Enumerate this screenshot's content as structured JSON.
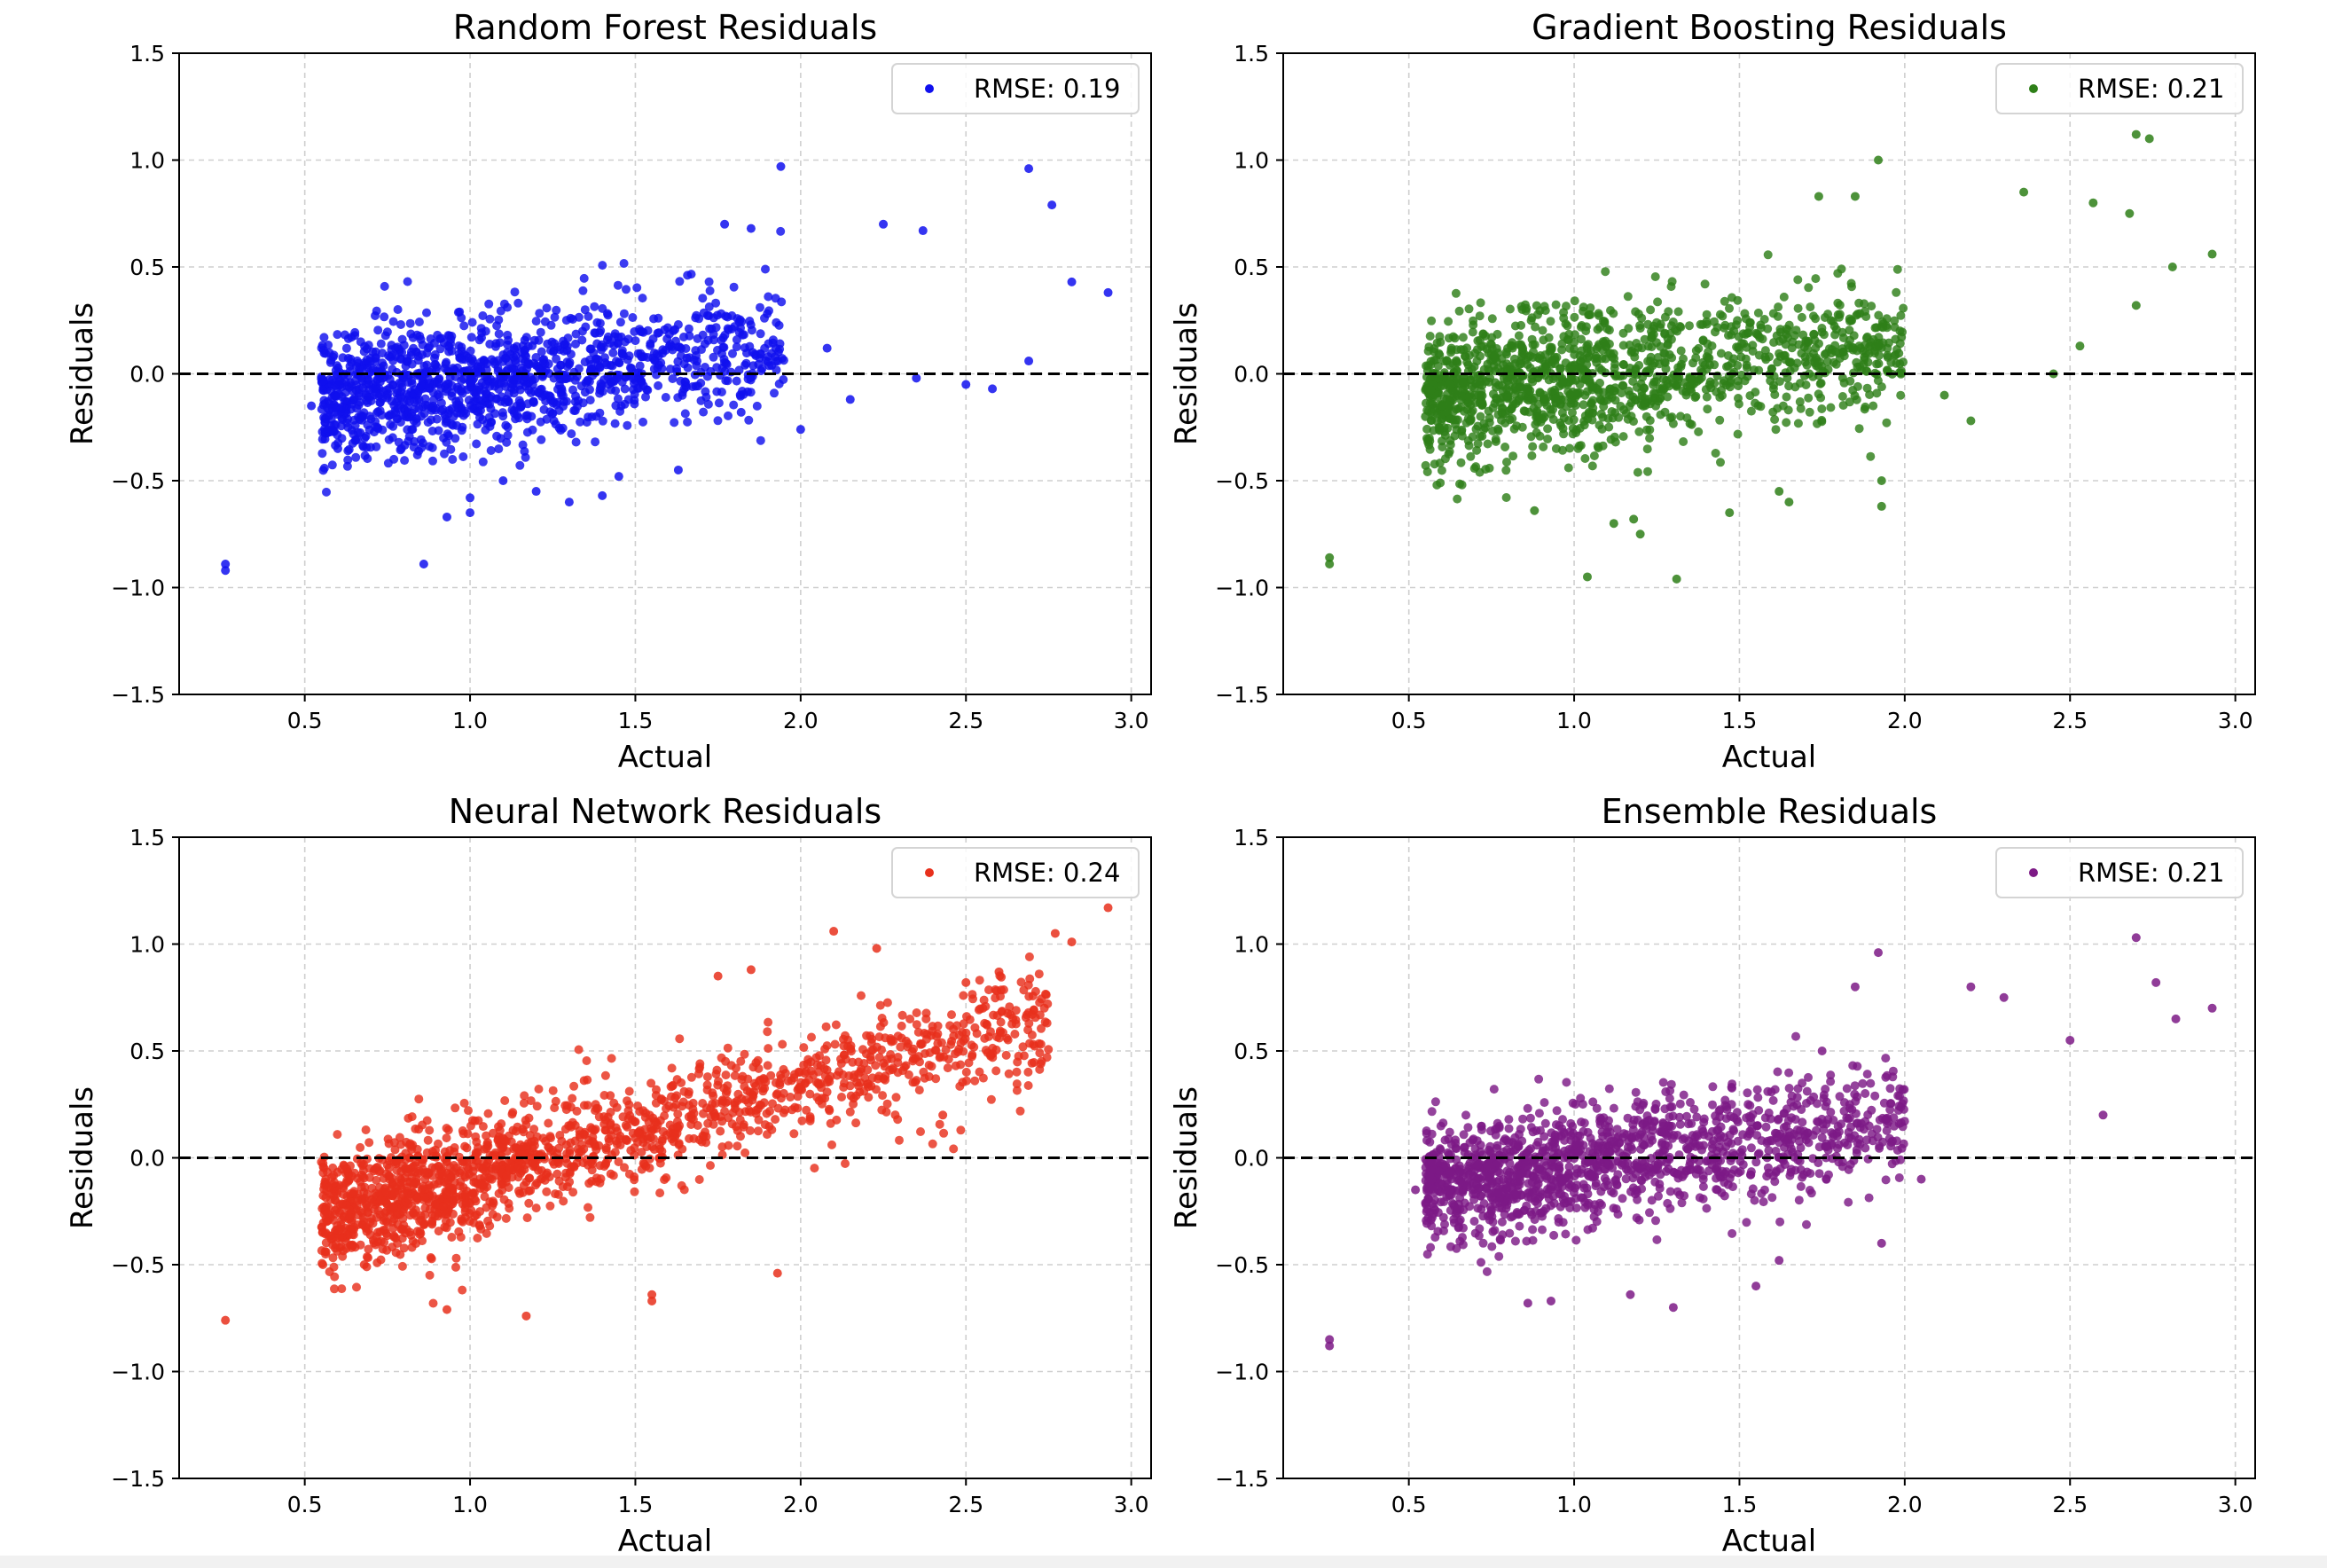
{
  "figure": {
    "background": "#ffffff"
  },
  "chart_data": [
    {
      "type": "scatter",
      "title": "Random Forest Residuals",
      "xlabel": "Actual",
      "ylabel": "Residuals",
      "xlim": [
        0.12,
        3.06
      ],
      "ylim": [
        -1.5,
        1.5
      ],
      "xticks": [
        0.5,
        1.0,
        1.5,
        2.0,
        2.5,
        3.0
      ],
      "yticks": [
        -1.5,
        -1.0,
        -0.5,
        0.0,
        0.5,
        1.0,
        1.5
      ],
      "xtick_labels": [
        "0.5",
        "1.0",
        "1.5",
        "2.0",
        "2.5",
        "3.0"
      ],
      "ytick_labels": [
        "−1.5",
        "−1.0",
        "−0.5",
        "0.0",
        "0.5",
        "1.0",
        "1.5"
      ],
      "grid": true,
      "reference_line": {
        "y": 0.0,
        "style": "dashed",
        "color": "#000000"
      },
      "legend": {
        "position": "top-right",
        "label": "RMSE: 0.19"
      },
      "series": [
        {
          "name": "RMSE: 0.19",
          "color": "#1010ee",
          "points": [
            [
              0.26,
              -0.89
            ],
            [
              0.26,
              -0.92
            ],
            [
              0.86,
              -0.89
            ],
            [
              0.93,
              -0.67
            ],
            [
              1.0,
              -0.65
            ],
            [
              1.94,
              0.97
            ],
            [
              2.69,
              0.96
            ],
            [
              2.76,
              0.79
            ],
            [
              2.93,
              0.38
            ],
            [
              2.82,
              0.43
            ],
            [
              2.69,
              0.06
            ],
            [
              2.58,
              -0.07
            ],
            [
              2.5,
              -0.05
            ],
            [
              2.37,
              0.67
            ],
            [
              2.25,
              0.7
            ],
            [
              1.85,
              0.68
            ],
            [
              1.77,
              0.7
            ],
            [
              2.08,
              0.12
            ],
            [
              2.15,
              -0.12
            ],
            [
              2.35,
              -0.02
            ],
            [
              0.52,
              -0.15
            ],
            [
              0.6,
              -0.35
            ],
            [
              0.72,
              -0.25
            ],
            [
              1.0,
              -0.58
            ],
            [
              1.1,
              -0.5
            ],
            [
              1.2,
              -0.55
            ],
            [
              1.45,
              -0.48
            ],
            [
              1.63,
              -0.45
            ],
            [
              1.3,
              -0.6
            ],
            [
              1.4,
              -0.57
            ],
            [
              2.0,
              -0.26
            ],
            [
              1.82,
              -0.18
            ]
          ]
        }
      ],
      "cloud": {
        "xmin": 0.55,
        "xmax": 1.95,
        "center_slope": 0.18,
        "center_at": 1.2,
        "spread": 0.16,
        "count": 1350,
        "seed": 11
      }
    },
    {
      "type": "scatter",
      "title": "Gradient Boosting Residuals",
      "xlabel": "Actual",
      "ylabel": "Residuals",
      "xlim": [
        0.12,
        3.06
      ],
      "ylim": [
        -1.5,
        1.5
      ],
      "xticks": [
        0.5,
        1.0,
        1.5,
        2.0,
        2.5,
        3.0
      ],
      "yticks": [
        -1.5,
        -1.0,
        -0.5,
        0.0,
        0.5,
        1.0,
        1.5
      ],
      "xtick_labels": [
        "0.5",
        "1.0",
        "1.5",
        "2.0",
        "2.5",
        "3.0"
      ],
      "ytick_labels": [
        "−1.5",
        "−1.0",
        "−0.5",
        "0.0",
        "0.5",
        "1.0",
        "1.5"
      ],
      "grid": true,
      "reference_line": {
        "y": 0.0,
        "style": "dashed",
        "color": "#000000"
      },
      "legend": {
        "position": "top-right",
        "label": "RMSE: 0.21"
      },
      "series": [
        {
          "name": "RMSE: 0.21",
          "color": "#2e7f18",
          "points": [
            [
              0.26,
              -0.86
            ],
            [
              0.26,
              -0.89
            ],
            [
              1.04,
              -0.95
            ],
            [
              1.31,
              -0.96
            ],
            [
              1.92,
              1.0
            ],
            [
              2.7,
              1.12
            ],
            [
              2.74,
              1.1
            ],
            [
              2.93,
              0.56
            ],
            [
              2.81,
              0.5
            ],
            [
              2.7,
              0.32
            ],
            [
              2.53,
              0.13
            ],
            [
              2.45,
              0.0
            ],
            [
              2.36,
              0.85
            ],
            [
              1.74,
              0.83
            ],
            [
              1.85,
              0.83
            ],
            [
              2.57,
              0.8
            ],
            [
              2.68,
              0.75
            ],
            [
              1.93,
              -0.62
            ],
            [
              1.93,
              -0.5
            ],
            [
              1.65,
              -0.6
            ],
            [
              1.62,
              -0.55
            ],
            [
              1.47,
              -0.65
            ],
            [
              0.88,
              -0.64
            ],
            [
              1.12,
              -0.7
            ],
            [
              1.2,
              -0.75
            ],
            [
              1.18,
              -0.68
            ],
            [
              0.55,
              -0.2
            ],
            [
              2.12,
              -0.1
            ],
            [
              2.2,
              -0.22
            ]
          ]
        }
      ],
      "cloud": {
        "xmin": 0.55,
        "xmax": 2.0,
        "center_slope": 0.15,
        "center_at": 1.2,
        "spread": 0.17,
        "count": 1400,
        "seed": 23
      }
    },
    {
      "type": "scatter",
      "title": "Neural Network Residuals",
      "xlabel": "Actual",
      "ylabel": "Residuals",
      "xlim": [
        0.12,
        3.06
      ],
      "ylim": [
        -1.5,
        1.5
      ],
      "xticks": [
        0.5,
        1.0,
        1.5,
        2.0,
        2.5,
        3.0
      ],
      "yticks": [
        -1.5,
        -1.0,
        -0.5,
        0.0,
        0.5,
        1.0,
        1.5
      ],
      "xtick_labels": [
        "0.5",
        "1.0",
        "1.5",
        "2.0",
        "2.5",
        "3.0"
      ],
      "ytick_labels": [
        "−1.5",
        "−1.0",
        "−0.5",
        "0.0",
        "0.5",
        "1.0",
        "1.5"
      ],
      "grid": true,
      "reference_line": {
        "y": 0.0,
        "style": "dashed",
        "color": "#000000"
      },
      "legend": {
        "position": "top-right",
        "label": "RMSE: 0.24"
      },
      "series": [
        {
          "name": "RMSE: 0.24",
          "color": "#e8301c",
          "points": [
            [
              0.26,
              -0.76
            ],
            [
              2.93,
              1.17
            ],
            [
              2.82,
              1.01
            ],
            [
              2.77,
              1.05
            ],
            [
              2.1,
              1.06
            ],
            [
              2.23,
              0.98
            ],
            [
              1.93,
              -0.54
            ],
            [
              1.55,
              -0.64
            ],
            [
              1.55,
              -0.67
            ],
            [
              0.68,
              -0.5
            ],
            [
              0.93,
              -0.71
            ],
            [
              1.17,
              -0.74
            ],
            [
              2.7,
              0.67
            ],
            [
              2.43,
              0.2
            ],
            [
              2.6,
              0.87
            ],
            [
              2.5,
              0.82
            ],
            [
              1.75,
              0.85
            ],
            [
              1.85,
              0.88
            ]
          ]
        }
      ],
      "cloud": {
        "xmin": 0.55,
        "xmax": 2.75,
        "center_slope": 0.42,
        "center_at": 1.2,
        "spread": 0.15,
        "count": 1700,
        "seed": 37
      }
    },
    {
      "type": "scatter",
      "title": "Ensemble Residuals",
      "xlabel": "Actual",
      "ylabel": "Residuals",
      "xlim": [
        0.12,
        3.06
      ],
      "ylim": [
        -1.5,
        1.5
      ],
      "xticks": [
        0.5,
        1.0,
        1.5,
        2.0,
        2.5,
        3.0
      ],
      "yticks": [
        -1.5,
        -1.0,
        -0.5,
        0.0,
        0.5,
        1.0,
        1.5
      ],
      "xtick_labels": [
        "0.5",
        "1.0",
        "1.5",
        "2.0",
        "2.5",
        "3.0"
      ],
      "ytick_labels": [
        "−1.5",
        "−1.0",
        "−0.5",
        "0.0",
        "0.5",
        "1.0",
        "1.5"
      ],
      "grid": true,
      "reference_line": {
        "y": 0.0,
        "style": "dashed",
        "color": "#000000"
      },
      "legend": {
        "position": "top-right",
        "label": "RMSE: 0.21"
      },
      "series": [
        {
          "name": "RMSE: 0.21",
          "color": "#7d1a86",
          "points": [
            [
              0.26,
              -0.85
            ],
            [
              0.26,
              -0.88
            ],
            [
              1.92,
              0.96
            ],
            [
              2.7,
              1.03
            ],
            [
              2.76,
              0.82
            ],
            [
              2.93,
              0.7
            ],
            [
              2.82,
              0.65
            ],
            [
              2.6,
              0.2
            ],
            [
              2.5,
              0.55
            ],
            [
              1.85,
              0.8
            ],
            [
              1.75,
              0.5
            ],
            [
              2.2,
              0.8
            ],
            [
              2.3,
              0.75
            ],
            [
              0.86,
              -0.68
            ],
            [
              0.93,
              -0.67
            ],
            [
              1.17,
              -0.64
            ],
            [
              1.3,
              -0.7
            ],
            [
              1.55,
              -0.6
            ],
            [
              1.93,
              -0.4
            ],
            [
              1.62,
              -0.48
            ],
            [
              0.52,
              -0.15
            ],
            [
              2.05,
              -0.1
            ]
          ]
        }
      ],
      "cloud": {
        "xmin": 0.55,
        "xmax": 2.0,
        "center_slope": 0.2,
        "center_at": 1.2,
        "spread": 0.15,
        "count": 1400,
        "seed": 53
      }
    }
  ]
}
